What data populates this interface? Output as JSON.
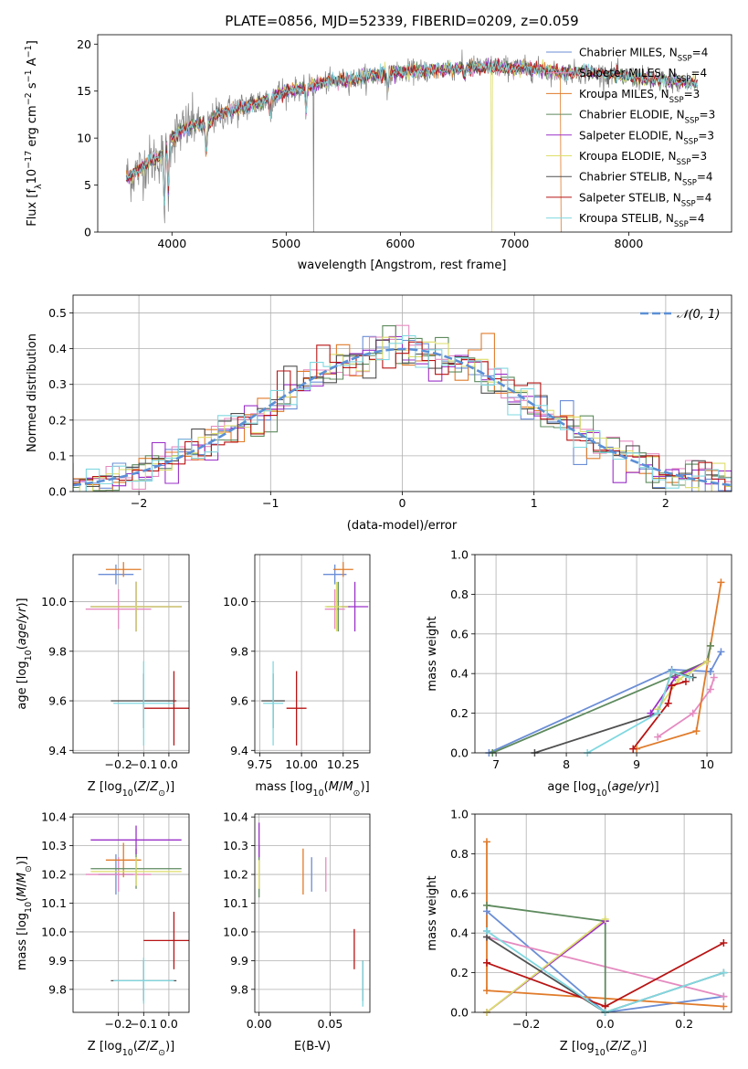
{
  "figure": {
    "title": "PLATE=0856, MJD=52339, FIBERID=0209, z=0.059"
  },
  "model_colors": {
    "Chabrier MILES": "#6b8ed6",
    "Salpeter MILES": "#e58bc0",
    "Kroupa MILES": "#e07b2a",
    "Chabrier ELODIE": "#5e8a5e",
    "Salpeter ELODIE": "#9b30c8",
    "Kroupa ELODIE": "#dede6a",
    "Chabrier STELIB": "#505050",
    "Salpeter STELIB": "#b81414",
    "Kroupa STELIB": "#80d8e0"
  },
  "chart_data": [
    {
      "id": "spectrum",
      "type": "line",
      "title": "PLATE=0856, MJD=52339, FIBERID=0209, z=0.059",
      "xlabel": "wavelength [Angstrom, rest frame]",
      "ylabel": "Flux [f_λ 10^-17 erg cm^-2 s^-1 A^-1]",
      "xlim": [
        3350,
        8900
      ],
      "ylim": [
        0,
        21
      ],
      "xticks": [
        4000,
        5000,
        6000,
        7000,
        8000
      ],
      "yticks": [
        0,
        5,
        10,
        15,
        20
      ],
      "grid": false,
      "legend_position": "bottom-right",
      "continuum": {
        "x": [
          3600,
          3700,
          3800,
          3900,
          4000,
          4100,
          4200,
          4300,
          4400,
          4600,
          4800,
          5000,
          5200,
          5400,
          5600,
          5800,
          6000,
          6200,
          6400,
          6600,
          6800,
          7000,
          7200,
          7400,
          7600,
          7800,
          8000,
          8200,
          8400,
          8600
        ],
        "y": [
          5.8,
          6.5,
          7.5,
          8.0,
          10.0,
          11.0,
          11.5,
          11.3,
          12.5,
          13.2,
          14.0,
          15.0,
          15.5,
          16.0,
          16.3,
          16.8,
          17.0,
          17.2,
          17.3,
          17.5,
          17.6,
          17.5,
          17.3,
          17.0,
          17.0,
          16.8,
          16.5,
          16.3,
          16.0,
          15.8
        ]
      },
      "series": [
        {
          "name": "Chabrier MILES, N_SSP=4"
        },
        {
          "name": "Salpeter MILES, N_SSP=4"
        },
        {
          "name": "Kroupa MILES, N_SSP=3"
        },
        {
          "name": "Chabrier ELODIE, N_SSP=3"
        },
        {
          "name": "Salpeter ELODIE, N_SSP=3"
        },
        {
          "name": "Kroupa ELODIE, N_SSP=3"
        },
        {
          "name": "Chabrier STELIB, N_SSP=4"
        },
        {
          "name": "Salpeter STELIB, N_SSP=4"
        },
        {
          "name": "Kroupa STELIB, N_SSP=4"
        }
      ]
    },
    {
      "id": "residuals",
      "type": "histogram",
      "xlabel": "(data-model)/error",
      "ylabel": "Normed distribution",
      "xlim": [
        -2.5,
        2.5
      ],
      "ylim": [
        0,
        0.55
      ],
      "xticks": [
        -2,
        -1,
        0,
        1,
        2
      ],
      "yticks": [
        0.0,
        0.1,
        0.2,
        0.3,
        0.4,
        0.5
      ],
      "grid": true,
      "bin_width": 0.1,
      "legend_position": "top-right",
      "reference_label": "𝒩(0, 1)"
    },
    {
      "id": "age_vs_Z",
      "type": "scatter",
      "xlabel": "Z [log10(Z/Z☉)]",
      "ylabel": "age [log10(age/yr)]",
      "xlim": [
        -0.38,
        0.08
      ],
      "ylim": [
        9.39,
        10.19
      ],
      "xticks": [
        -0.2,
        -0.1,
        0.0
      ],
      "yticks": [
        9.4,
        9.6,
        9.8,
        10.0
      ],
      "grid": true,
      "points": [
        {
          "model": "Chabrier MILES",
          "x": -0.21,
          "y": 10.11,
          "ex": 0.07,
          "ey": 0.04
        },
        {
          "model": "Salpeter MILES",
          "x": -0.2,
          "y": 9.97,
          "ex": 0.13,
          "ey": 0.08
        },
        {
          "model": "Kroupa MILES",
          "x": -0.18,
          "y": 10.13,
          "ex": 0.07,
          "ey": 0.03
        },
        {
          "model": "Chabrier ELODIE",
          "x": -0.13,
          "y": 9.98,
          "ex": 0.18,
          "ey": 0.1
        },
        {
          "model": "Salpeter ELODIE",
          "x": -0.13,
          "y": 9.98,
          "ex": 0.18,
          "ey": 0.1
        },
        {
          "model": "Kroupa ELODIE",
          "x": -0.13,
          "y": 9.98,
          "ex": 0.18,
          "ey": 0.1
        },
        {
          "model": "Chabrier STELIB",
          "x": -0.1,
          "y": 9.6,
          "ex": 0.13,
          "ey": 0.11
        },
        {
          "model": "Salpeter STELIB",
          "x": 0.02,
          "y": 9.57,
          "ex": 0.12,
          "ey": 0.15
        },
        {
          "model": "Kroupa STELIB",
          "x": -0.1,
          "y": 9.59,
          "ex": 0.12,
          "ey": 0.17
        }
      ]
    },
    {
      "id": "age_vs_mass",
      "type": "scatter",
      "xlabel": "mass [log10(M/M☉)]",
      "ylabel": "",
      "xlim": [
        9.72,
        10.41
      ],
      "ylim": [
        9.39,
        10.19
      ],
      "xticks": [
        9.75,
        10.0,
        10.25
      ],
      "yticks": [
        9.4,
        9.6,
        9.8,
        10.0
      ],
      "grid": true,
      "points": [
        {
          "model": "Chabrier MILES",
          "x": 10.2,
          "y": 10.11,
          "ex": 0.07,
          "ey": 0.04
        },
        {
          "model": "Salpeter MILES",
          "x": 10.2,
          "y": 9.97,
          "ex": 0.06,
          "ey": 0.08
        },
        {
          "model": "Kroupa MILES",
          "x": 10.25,
          "y": 10.13,
          "ex": 0.06,
          "ey": 0.03
        },
        {
          "model": "Chabrier ELODIE",
          "x": 10.22,
          "y": 9.98,
          "ex": 0.07,
          "ey": 0.1
        },
        {
          "model": "Salpeter ELODIE",
          "x": 10.32,
          "y": 9.98,
          "ex": 0.08,
          "ey": 0.1
        },
        {
          "model": "Kroupa ELODIE",
          "x": 10.21,
          "y": 9.98,
          "ex": 0.07,
          "ey": 0.1
        },
        {
          "model": "Chabrier STELIB",
          "x": 9.83,
          "y": 9.6,
          "ex": 0.07,
          "ey": 0.11
        },
        {
          "model": "Salpeter STELIB",
          "x": 9.97,
          "y": 9.57,
          "ex": 0.06,
          "ey": 0.15
        },
        {
          "model": "Kroupa STELIB",
          "x": 9.83,
          "y": 9.59,
          "ex": 0.06,
          "ey": 0.17
        }
      ]
    },
    {
      "id": "weight_vs_age",
      "type": "line",
      "xlabel": "age [log10(age/yr)]",
      "ylabel": "mass weight",
      "xlim": [
        6.7,
        10.35
      ],
      "ylim": [
        0,
        1
      ],
      "xticks": [
        7,
        8,
        9,
        10
      ],
      "yticks": [
        0.0,
        0.2,
        0.4,
        0.6,
        0.8,
        1.0
      ],
      "grid": true,
      "series": [
        {
          "model": "Chabrier MILES",
          "x": [
            6.9,
            9.5,
            10.05,
            10.2
          ],
          "y": [
            0.0,
            0.42,
            0.41,
            0.51
          ]
        },
        {
          "model": "Salpeter MILES",
          "x": [
            9.3,
            9.8,
            10.05,
            10.1
          ],
          "y": [
            0.08,
            0.2,
            0.32,
            0.38
          ]
        },
        {
          "model": "Kroupa MILES",
          "x": [
            9.0,
            9.85,
            10.05,
            10.2
          ],
          "y": [
            0.02,
            0.11,
            0.54,
            0.86
          ]
        },
        {
          "model": "Chabrier ELODIE",
          "x": [
            6.95,
            10.0,
            10.05
          ],
          "y": [
            0.0,
            0.46,
            0.54
          ]
        },
        {
          "model": "Salpeter ELODIE",
          "x": [
            9.2,
            9.55,
            10.0
          ],
          "y": [
            0.2,
            0.38,
            0.46
          ]
        },
        {
          "model": "Kroupa ELODIE",
          "x": [
            9.3,
            9.6,
            10.0
          ],
          "y": [
            0.22,
            0.37,
            0.46
          ]
        },
        {
          "model": "Chabrier STELIB",
          "x": [
            7.55,
            9.3,
            9.5,
            9.8
          ],
          "y": [
            0.0,
            0.2,
            0.41,
            0.38
          ]
        },
        {
          "model": "Salpeter STELIB",
          "x": [
            8.95,
            9.45,
            9.5,
            9.7
          ],
          "y": [
            0.02,
            0.25,
            0.34,
            0.36
          ]
        },
        {
          "model": "Kroupa STELIB",
          "x": [
            8.3,
            9.3,
            9.5,
            9.75
          ],
          "y": [
            0.0,
            0.2,
            0.41,
            0.38
          ]
        }
      ]
    },
    {
      "id": "mass_vs_Z",
      "type": "scatter",
      "xlabel": "Z [log10(Z/Z☉)]",
      "ylabel": "mass [log10(M/M☉)]",
      "xlim": [
        -0.38,
        0.08
      ],
      "ylim": [
        9.72,
        10.41
      ],
      "xticks": [
        -0.2,
        -0.1,
        0.0
      ],
      "yticks": [
        9.8,
        9.9,
        10.0,
        10.1,
        10.2,
        10.3,
        10.4
      ],
      "grid": true,
      "points": [
        {
          "model": "Chabrier MILES",
          "x": -0.21,
          "y": 10.2,
          "ex": 0.07,
          "ey": 0.07
        },
        {
          "model": "Salpeter MILES",
          "x": -0.2,
          "y": 10.2,
          "ex": 0.13,
          "ey": 0.06
        },
        {
          "model": "Kroupa MILES",
          "x": -0.18,
          "y": 10.25,
          "ex": 0.07,
          "ey": 0.06
        },
        {
          "model": "Chabrier ELODIE",
          "x": -0.13,
          "y": 10.22,
          "ex": 0.18,
          "ey": 0.07
        },
        {
          "model": "Salpeter ELODIE",
          "x": -0.13,
          "y": 10.32,
          "ex": 0.18,
          "ey": 0.05
        },
        {
          "model": "Kroupa ELODIE",
          "x": -0.13,
          "y": 10.21,
          "ex": 0.18,
          "ey": 0.05
        },
        {
          "model": "Chabrier STELIB",
          "x": -0.1,
          "y": 9.83,
          "ex": 0.13,
          "ey": 0.07
        },
        {
          "model": "Salpeter STELIB",
          "x": 0.02,
          "y": 9.97,
          "ex": 0.12,
          "ey": 0.1
        },
        {
          "model": "Kroupa STELIB",
          "x": -0.1,
          "y": 9.83,
          "ex": 0.12,
          "ey": 0.08
        }
      ]
    },
    {
      "id": "mass_vs_EBV",
      "type": "scatter",
      "xlabel": "E(B-V)",
      "ylabel": "",
      "xlim": [
        -0.003,
        0.078
      ],
      "ylim": [
        9.72,
        10.41
      ],
      "xticks": [
        0.0,
        0.05
      ],
      "yticks": [
        9.8,
        9.9,
        10.0,
        10.1,
        10.2,
        10.3,
        10.4
      ],
      "grid": true,
      "points": [
        {
          "model": "Chabrier MILES",
          "x": 0.037,
          "y": 10.2,
          "ey": 0.06
        },
        {
          "model": "Salpeter MILES",
          "x": 0.047,
          "y": 10.2,
          "ey": 0.06
        },
        {
          "model": "Kroupa MILES",
          "x": 0.031,
          "y": 10.21,
          "ey": 0.08
        },
        {
          "model": "Chabrier ELODIE",
          "x": 0.0,
          "y": 10.21,
          "ey": 0.09
        },
        {
          "model": "Salpeter ELODIE",
          "x": 0.0,
          "y": 10.32,
          "ey": 0.06
        },
        {
          "model": "Kroupa ELODIE",
          "x": 0.0,
          "y": 10.2,
          "ey": 0.05
        },
        {
          "model": "Chabrier STELIB",
          "x": 0.073,
          "y": 9.83,
          "ey": 0.07
        },
        {
          "model": "Salpeter STELIB",
          "x": 0.067,
          "y": 9.94,
          "ey": 0.07
        },
        {
          "model": "Kroupa STELIB",
          "x": 0.073,
          "y": 9.82,
          "ey": 0.08
        }
      ]
    },
    {
      "id": "weight_vs_Z",
      "type": "line",
      "xlabel": "Z [log10(Z/Z☉)]",
      "ylabel": "mass weight",
      "xlim": [
        -0.33,
        0.32
      ],
      "ylim": [
        0,
        1
      ],
      "xticks": [
        -0.2,
        0.0,
        0.2
      ],
      "yticks": [
        0.0,
        0.2,
        0.4,
        0.6,
        0.8,
        1.0
      ],
      "grid": true,
      "series": [
        {
          "model": "Chabrier MILES",
          "x": [
            -0.3,
            -0.3,
            0.0,
            0.3
          ],
          "y": [
            0.41,
            0.51,
            0.0,
            0.08
          ]
        },
        {
          "model": "Salpeter MILES",
          "x": [
            -0.3,
            0.3
          ],
          "y": [
            0.38,
            0.08
          ]
        },
        {
          "model": "Kroupa MILES",
          "x": [
            -0.3,
            -0.3,
            0.3
          ],
          "y": [
            0.86,
            0.11,
            0.03
          ]
        },
        {
          "model": "Chabrier ELODIE",
          "x": [
            -0.3,
            0.0,
            0.0
          ],
          "y": [
            0.54,
            0.46,
            0.0
          ]
        },
        {
          "model": "Salpeter ELODIE",
          "x": [
            -0.3,
            0.0
          ],
          "y": [
            0.0,
            0.46
          ]
        },
        {
          "model": "Kroupa ELODIE",
          "x": [
            -0.3,
            0.0
          ],
          "y": [
            0.0,
            0.47
          ]
        },
        {
          "model": "Chabrier STELIB",
          "x": [
            -0.3,
            0.0,
            0.3
          ],
          "y": [
            0.38,
            0.0,
            0.2
          ]
        },
        {
          "model": "Salpeter STELIB",
          "x": [
            -0.3,
            0.0,
            0.3
          ],
          "y": [
            0.25,
            0.03,
            0.35
          ]
        },
        {
          "model": "Kroupa STELIB",
          "x": [
            -0.3,
            0.0,
            0.3
          ],
          "y": [
            0.41,
            0.0,
            0.2
          ]
        }
      ]
    }
  ]
}
